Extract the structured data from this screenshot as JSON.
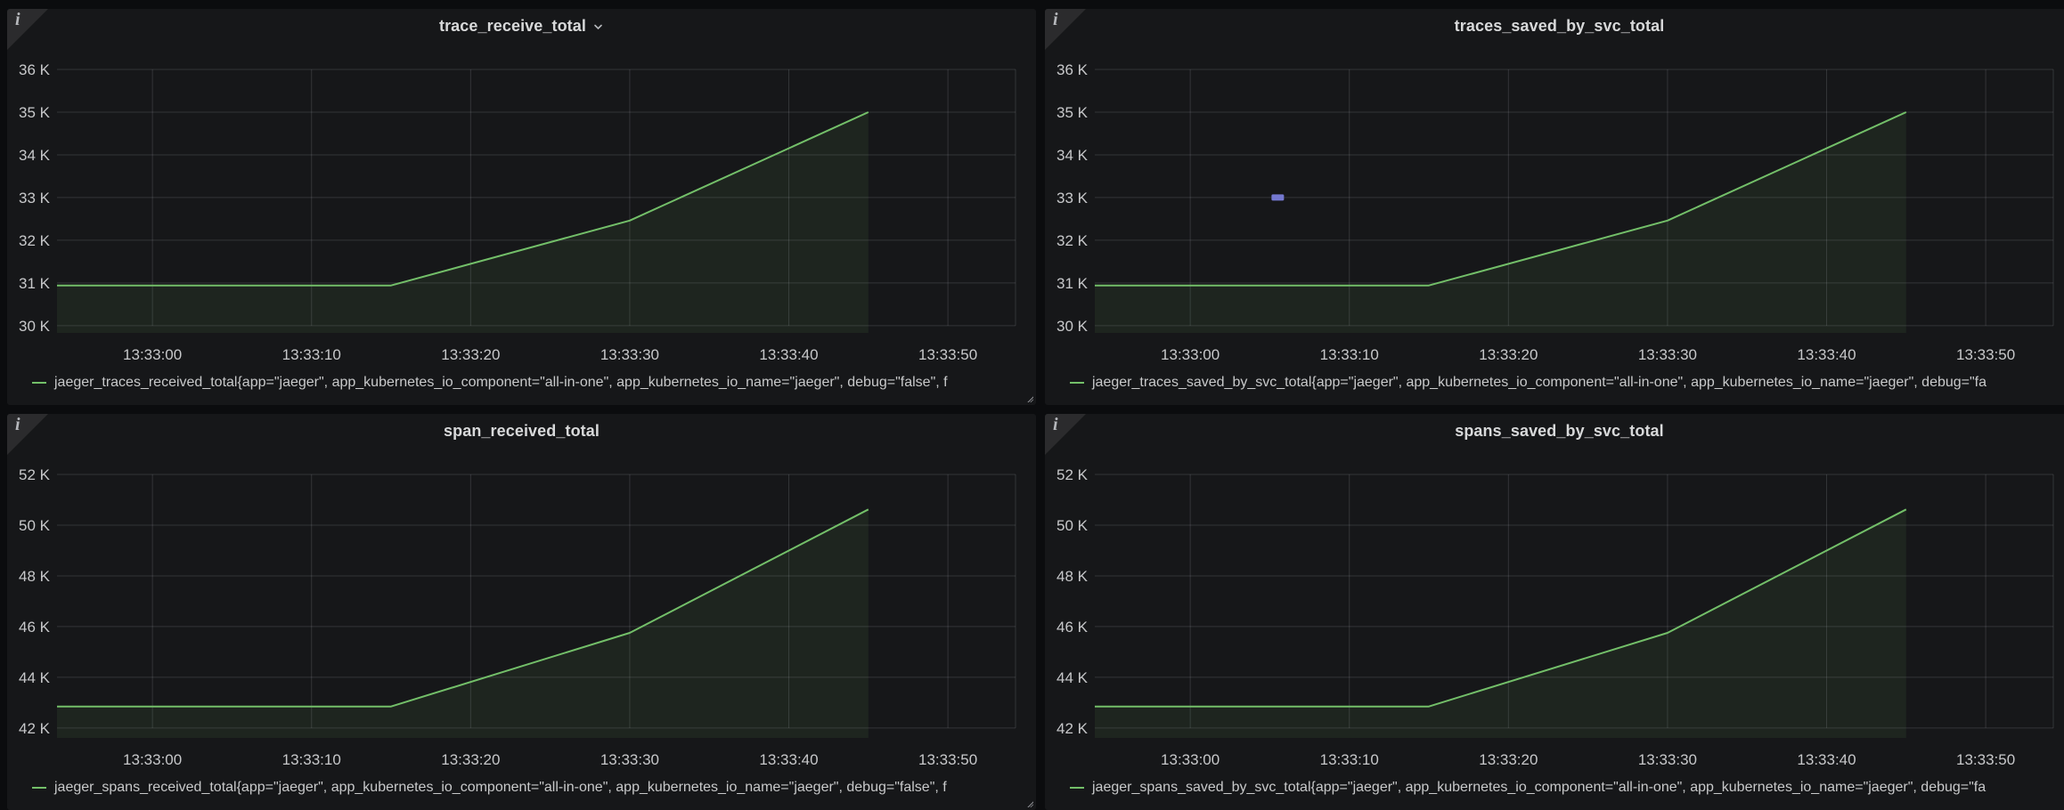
{
  "colors": {
    "page_bg": "#0b0c0e",
    "panel_bg": "#161719",
    "grid": "rgba(204,204,220,0.16)",
    "tick_text": "#c7c8ca",
    "title_text": "#d8d9da",
    "legend_text": "#c8c9ca",
    "series_green": "#73bf69",
    "series_fill": "rgba(115,191,105,0.085)",
    "marker_purple": "#7478cf"
  },
  "icons": {
    "info_glyph": "i"
  },
  "panels": [
    {
      "title": "trace_receive_total",
      "has_menu_chevron": true,
      "legend": {
        "swatch_color": "#73bf69",
        "label": "jaeger_traces_received_total{app=\"jaeger\", app_kubernetes_io_component=\"all-in-one\", app_kubernetes_io_name=\"jaeger\", debug=\"false\", f"
      },
      "chart_data": {
        "type": "line",
        "x_domain": [
          0,
          60.25
        ],
        "x_ticks": [
          {
            "t": 6,
            "label": "13:33:00"
          },
          {
            "t": 16,
            "label": "13:33:10"
          },
          {
            "t": 26,
            "label": "13:33:20"
          },
          {
            "t": 36,
            "label": "13:33:30"
          },
          {
            "t": 46,
            "label": "13:33:40"
          },
          {
            "t": 56,
            "label": "13:33:50"
          }
        ],
        "ylim": [
          29.83,
          36.125
        ],
        "y_unit": "K",
        "y_ticks": [
          {
            "v": 30,
            "label": "30 K"
          },
          {
            "v": 31,
            "label": "31 K"
          },
          {
            "v": 32,
            "label": "32 K"
          },
          {
            "v": 33,
            "label": "33 K"
          },
          {
            "v": 34,
            "label": "34 K"
          },
          {
            "v": 35,
            "label": "35 K"
          },
          {
            "v": 36,
            "label": "36 K"
          }
        ],
        "series": [
          {
            "name": "jaeger_traces_received_total",
            "color": "#73bf69",
            "fill": "rgba(115,191,105,0.085)",
            "points": [
              [
                0,
                30.94
              ],
              [
                21,
                30.94
              ],
              [
                36,
                32.46
              ],
              [
                51,
                35.0
              ]
            ]
          }
        ]
      }
    },
    {
      "title": "traces_saved_by_svc_total",
      "has_menu_chevron": false,
      "legend": {
        "swatch_color": "#73bf69",
        "label": "jaeger_traces_saved_by_svc_total{app=\"jaeger\", app_kubernetes_io_component=\"all-in-one\", app_kubernetes_io_name=\"jaeger\", debug=\"fa"
      },
      "chart_data": {
        "type": "line",
        "x_domain": [
          0,
          60.25
        ],
        "x_ticks": [
          {
            "t": 6,
            "label": "13:33:00"
          },
          {
            "t": 16,
            "label": "13:33:10"
          },
          {
            "t": 26,
            "label": "13:33:20"
          },
          {
            "t": 36,
            "label": "13:33:30"
          },
          {
            "t": 46,
            "label": "13:33:40"
          },
          {
            "t": 56,
            "label": "13:33:50"
          }
        ],
        "ylim": [
          29.83,
          36.125
        ],
        "y_unit": "K",
        "y_ticks": [
          {
            "v": 30,
            "label": "30 K"
          },
          {
            "v": 31,
            "label": "31 K"
          },
          {
            "v": 32,
            "label": "32 K"
          },
          {
            "v": 33,
            "label": "33 K"
          },
          {
            "v": 34,
            "label": "34 K"
          },
          {
            "v": 35,
            "label": "35 K"
          },
          {
            "v": 36,
            "label": "36 K"
          }
        ],
        "series": [
          {
            "name": "jaeger_traces_saved_by_svc_total",
            "color": "#73bf69",
            "fill": "rgba(115,191,105,0.085)",
            "points": [
              [
                0,
                30.94
              ],
              [
                21,
                30.94
              ],
              [
                36,
                32.46
              ],
              [
                51,
                35.0
              ]
            ]
          }
        ],
        "marker": {
          "t": 11.5,
          "v": 33,
          "color": "#7478cf"
        }
      }
    },
    {
      "title": "span_received_total",
      "has_menu_chevron": false,
      "legend": {
        "swatch_color": "#73bf69",
        "label": "jaeger_spans_received_total{app=\"jaeger\", app_kubernetes_io_component=\"all-in-one\", app_kubernetes_io_name=\"jaeger\", debug=\"false\", f"
      },
      "chart_data": {
        "type": "line",
        "x_domain": [
          0,
          60.25
        ],
        "x_ticks": [
          {
            "t": 6,
            "label": "13:33:00"
          },
          {
            "t": 16,
            "label": "13:33:10"
          },
          {
            "t": 26,
            "label": "13:33:20"
          },
          {
            "t": 36,
            "label": "13:33:30"
          },
          {
            "t": 46,
            "label": "13:33:40"
          },
          {
            "t": 56,
            "label": "13:33:50"
          }
        ],
        "ylim": [
          41.61,
          52.21
        ],
        "y_unit": "K",
        "y_ticks": [
          {
            "v": 42,
            "label": "42 K"
          },
          {
            "v": 44,
            "label": "44 K"
          },
          {
            "v": 46,
            "label": "46 K"
          },
          {
            "v": 48,
            "label": "48 K"
          },
          {
            "v": 50,
            "label": "50 K"
          },
          {
            "v": 52,
            "label": "52 K"
          }
        ],
        "series": [
          {
            "name": "jaeger_spans_received_total",
            "color": "#73bf69",
            "fill": "rgba(115,191,105,0.085)",
            "points": [
              [
                0,
                42.85
              ],
              [
                21,
                42.85
              ],
              [
                36,
                45.75
              ],
              [
                51,
                50.62
              ]
            ]
          }
        ]
      }
    },
    {
      "title": "spans_saved_by_svc_total",
      "has_menu_chevron": false,
      "legend": {
        "swatch_color": "#73bf69",
        "label": "jaeger_spans_saved_by_svc_total{app=\"jaeger\", app_kubernetes_io_component=\"all-in-one\", app_kubernetes_io_name=\"jaeger\", debug=\"fa"
      },
      "chart_data": {
        "type": "line",
        "x_domain": [
          0,
          60.25
        ],
        "x_ticks": [
          {
            "t": 6,
            "label": "13:33:00"
          },
          {
            "t": 16,
            "label": "13:33:10"
          },
          {
            "t": 26,
            "label": "13:33:20"
          },
          {
            "t": 36,
            "label": "13:33:30"
          },
          {
            "t": 46,
            "label": "13:33:40"
          },
          {
            "t": 56,
            "label": "13:33:50"
          }
        ],
        "ylim": [
          41.61,
          52.21
        ],
        "y_unit": "K",
        "y_ticks": [
          {
            "v": 42,
            "label": "42 K"
          },
          {
            "v": 44,
            "label": "44 K"
          },
          {
            "v": 46,
            "label": "46 K"
          },
          {
            "v": 48,
            "label": "48 K"
          },
          {
            "v": 50,
            "label": "50 K"
          },
          {
            "v": 52,
            "label": "52 K"
          }
        ],
        "series": [
          {
            "name": "jaeger_spans_saved_by_svc_total",
            "color": "#73bf69",
            "fill": "rgba(115,191,105,0.085)",
            "points": [
              [
                0,
                42.85
              ],
              [
                21,
                42.85
              ],
              [
                36,
                45.75
              ],
              [
                51,
                50.62
              ]
            ]
          }
        ]
      }
    }
  ]
}
